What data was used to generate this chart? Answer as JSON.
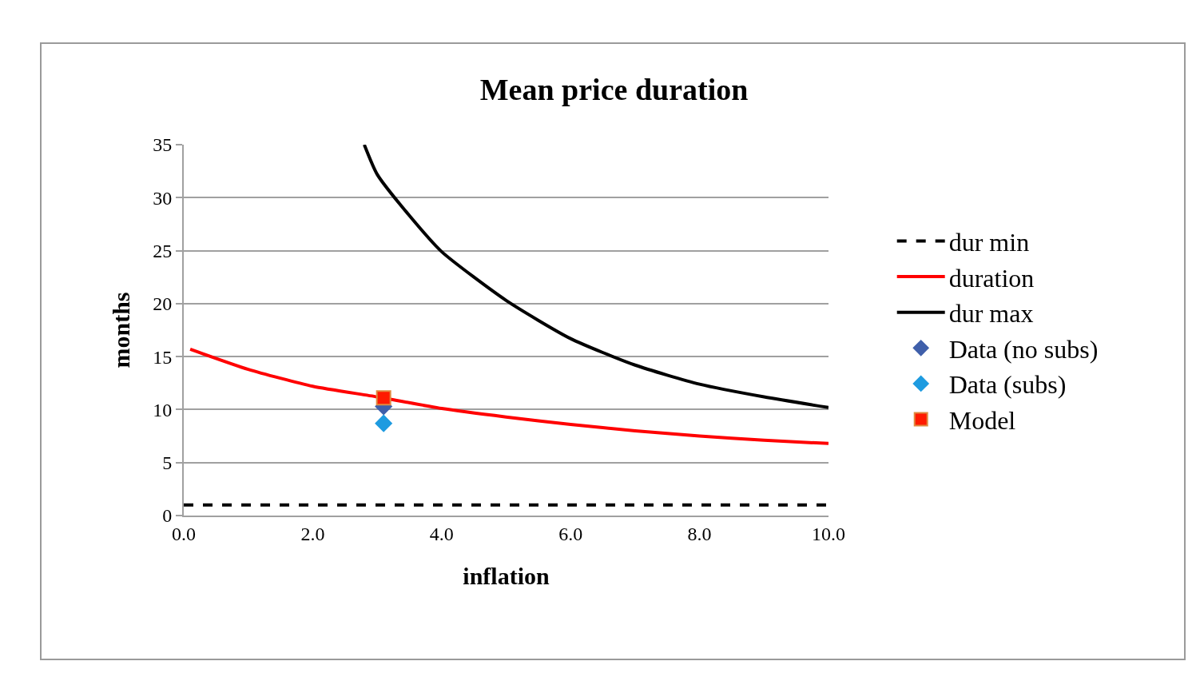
{
  "chart_data": {
    "type": "line",
    "title": "Mean price duration",
    "xlabel": "inflation",
    "ylabel": "months",
    "xlim": [
      0,
      10
    ],
    "xticks": [
      {
        "value": 0,
        "label": "0.0"
      },
      {
        "value": 2,
        "label": "2.0"
      },
      {
        "value": 4,
        "label": "4.0"
      },
      {
        "value": 6,
        "label": "6.0"
      },
      {
        "value": 8,
        "label": "8.0"
      },
      {
        "value": 10,
        "label": "10.0"
      }
    ],
    "ylim": [
      0,
      35
    ],
    "yticks": [
      0,
      5,
      10,
      15,
      20,
      25,
      30,
      35
    ],
    "grid": "y",
    "legend": "right",
    "series": [
      {
        "name": "dur min",
        "color": "#000000",
        "line_style": "dashed",
        "marker": "none",
        "x": [
          0,
          10
        ],
        "values": [
          1,
          1
        ]
      },
      {
        "name": "duration",
        "color": "#ff0000",
        "line_style": "solid",
        "marker": "none",
        "x": [
          0.1,
          1,
          2,
          3,
          4,
          5,
          6,
          7,
          8,
          9,
          10
        ],
        "values": [
          15.7,
          13.8,
          12.2,
          11.2,
          10.1,
          9.3,
          8.6,
          8.0,
          7.5,
          7.1,
          6.8
        ]
      },
      {
        "name": "dur max",
        "color": "#000000",
        "line_style": "solid",
        "marker": "none",
        "x": [
          2.8,
          3,
          3.5,
          4,
          5,
          6,
          7,
          8,
          9,
          10
        ],
        "values": [
          35,
          32.2,
          28.3,
          24.9,
          20.3,
          16.7,
          14.2,
          12.4,
          11.2,
          10.2
        ]
      },
      {
        "name": "Data (no subs)",
        "type": "scatter",
        "color": "#3f5faa",
        "marker": "diamond",
        "x": [
          3.1
        ],
        "values": [
          10.3
        ]
      },
      {
        "name": "Data (subs)",
        "type": "scatter",
        "color": "#1e9be0",
        "marker": "diamond",
        "x": [
          3.1
        ],
        "values": [
          8.7
        ]
      },
      {
        "name": "Model",
        "type": "scatter",
        "color": "#ff1a00",
        "marker": "square",
        "x": [
          3.1
        ],
        "values": [
          11.1
        ]
      }
    ]
  }
}
